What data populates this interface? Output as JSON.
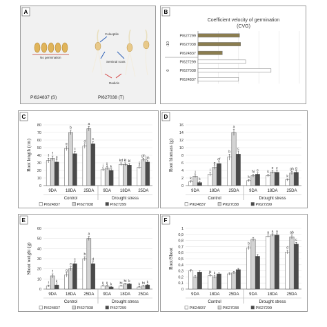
{
  "panel_a": {
    "label": "A",
    "no_germination": "No germination",
    "coleoptile": "Coleoptile",
    "seminal_roots": "Seminal roots",
    "radicle": "Radicle",
    "left_caption": "PI624837 (S)",
    "right_caption": "PI627038 (T)"
  },
  "colors": {
    "pi624837": "#ffffff",
    "pi627038": "#d3d3d3",
    "pi627299": "#4a4a4a",
    "panel_b_stress": "#8b7d4f",
    "seed": "#e0b45a",
    "arrow": "#2b5fb6",
    "radicle_arrow": "#d23b3b",
    "underline": "#c0392b"
  },
  "chart_data": [
    {
      "panel": "B",
      "type": "bar",
      "orientation": "horizontal",
      "title": "Coefficient velocity of germination",
      "subtitle": "(CVG)",
      "xlim": [
        0,
        1
      ],
      "xticks": [
        "0",
        "0.2",
        "0.4",
        "0.6",
        "0.8",
        "1"
      ],
      "groups": [
        {
          "name": "-10",
          "categories": [
            "PI627299",
            "PI627038",
            "PI624837"
          ],
          "values": [
            0.41,
            0.42,
            0.24
          ]
        },
        {
          "name": "0",
          "categories": [
            "PI627299",
            "PI627038",
            "PI624837"
          ],
          "values": [
            0.47,
            0.72,
            0.4
          ]
        }
      ],
      "grid": true
    },
    {
      "panel": "C",
      "type": "bar",
      "ylabel": "Root length (cm)",
      "ylim": [
        0,
        80
      ],
      "yticks": [
        "0",
        "10",
        "20",
        "30",
        "40",
        "50",
        "60",
        "70",
        "80"
      ],
      "categories": [
        "9DA",
        "18DA",
        "25DA",
        "9DA",
        "18DA",
        "25DA"
      ],
      "groups": [
        "Control",
        "Drought stress"
      ],
      "series": [
        {
          "name": "PI624837",
          "values": [
            33,
            49,
            52,
            21,
            28,
            24
          ],
          "errors": [
            3,
            3,
            3,
            2,
            2,
            2
          ],
          "letters": [
            "f",
            "e",
            "d",
            "j",
            "kd",
            "ij"
          ]
        },
        {
          "name": "PI627038",
          "values": [
            36,
            70,
            75,
            23,
            28,
            34
          ],
          "errors": [
            3,
            3,
            3,
            2,
            2,
            2
          ],
          "letters": [
            "f",
            "b",
            "a",
            "ij",
            "kl",
            "gh"
          ]
        },
        {
          "name": "PI627299",
          "values": [
            31,
            42,
            55,
            20,
            27,
            31
          ],
          "errors": [
            3,
            3,
            3,
            2,
            2,
            2
          ],
          "letters": [
            "g",
            "c",
            "c",
            "k",
            "kl",
            "gh"
          ]
        }
      ],
      "grid": true
    },
    {
      "panel": "D",
      "type": "bar",
      "ylabel": "Root biomass (g)",
      "ylim": [
        0,
        16
      ],
      "yticks": [
        "0",
        "2",
        "4",
        "6",
        "8",
        "10",
        "12",
        "14",
        "16"
      ],
      "categories": [
        "9DA",
        "18DA",
        "25DA",
        "9DA",
        "18DA",
        "25DA"
      ],
      "groups": [
        "Control",
        "Drought stress"
      ],
      "series": [
        {
          "name": "PI624837",
          "values": [
            1.0,
            3.0,
            7.5,
            1.3,
            2.6,
            1.5
          ],
          "errors": [
            0.3,
            0.5,
            0.8,
            0.3,
            0.4,
            0.3
          ],
          "letters": [
            "k",
            "i",
            "b",
            "k",
            "k",
            "k"
          ]
        },
        {
          "name": "PI627038",
          "values": [
            2.5,
            4.8,
            14.0,
            2.6,
            3.6,
            3.3
          ],
          "errors": [
            0.4,
            0.5,
            0.8,
            0.4,
            0.4,
            0.4
          ],
          "letters": [
            "j",
            "g",
            "a",
            "hi",
            "e",
            "gh"
          ]
        },
        {
          "name": "PI627299",
          "values": [
            0.8,
            5.8,
            8.3,
            3.0,
            3.5,
            3.5
          ],
          "errors": [
            0.3,
            0.5,
            0.8,
            0.4,
            0.4,
            0.4
          ],
          "letters": [
            "k",
            "ef",
            "c",
            "e",
            "e",
            "g"
          ]
        }
      ],
      "grid": true
    },
    {
      "panel": "E",
      "type": "bar",
      "ylabel": "Shoot weight (g)",
      "ylim": [
        0,
        60
      ],
      "yticks": [
        "0",
        "10",
        "20",
        "30",
        "40",
        "50",
        "60"
      ],
      "categories": [
        "9DA",
        "18DA",
        "25DA",
        "9DA",
        "18DA",
        "25DA"
      ],
      "groups": [
        "Control",
        "Drought stress"
      ],
      "series": [
        {
          "name": "PI624837",
          "values": [
            3,
            14,
            30,
            3,
            3,
            2
          ],
          "errors": [
            1,
            2,
            2,
            0.5,
            0.5,
            0.5
          ],
          "letters": [
            "i",
            "g",
            "b",
            "ij",
            "hi",
            "k"
          ]
        },
        {
          "name": "PI627038",
          "values": [
            13,
            20,
            50,
            3,
            5,
            3
          ],
          "errors": [
            2,
            2,
            2,
            0.5,
            0.5,
            0.5
          ],
          "letters": [
            "f",
            "e",
            "a",
            "ij",
            "hi",
            "hi"
          ]
        },
        {
          "name": "PI627299",
          "values": [
            4,
            25,
            25,
            2,
            5,
            4
          ],
          "errors": [
            1,
            2,
            2,
            0.5,
            0.5,
            0.5
          ],
          "letters": [
            "k",
            "c",
            "d",
            "k",
            "k",
            "k"
          ]
        }
      ],
      "grid": true
    },
    {
      "panel": "F",
      "type": "bar",
      "ylabel": "Root/Shoot",
      "ylim": [
        0,
        1
      ],
      "yticks": [
        "0",
        "0,1",
        "0,2",
        "0,3",
        "0,4",
        "0,5",
        "0,6",
        "0,7",
        "0,8",
        "0,9",
        "1"
      ],
      "categories": [
        "9DA",
        "18DA",
        "25DA",
        "9DA",
        "18DA",
        "25DA"
      ],
      "groups": [
        "Control",
        "Drought stress"
      ],
      "series": [
        {
          "name": "PI624837",
          "values": [
            0.3,
            0.22,
            0.25,
            0.68,
            0.87,
            0.61
          ],
          "errors": [
            0.02,
            0.02,
            0.02,
            0.03,
            0.02,
            0.03
          ],
          "letters": [
            "",
            "jk",
            "",
            "b",
            "a",
            "d"
          ]
        },
        {
          "name": "PI627038",
          "values": [
            0.2,
            0.2,
            0.27,
            0.82,
            0.89,
            0.86
          ],
          "errors": [
            0.02,
            0.02,
            0.02,
            0.03,
            0.02,
            0.03
          ],
          "letters": [
            "",
            "k",
            "",
            "",
            "a",
            "ab"
          ]
        },
        {
          "name": "PI627299",
          "values": [
            0.28,
            0.25,
            0.32,
            0.54,
            0.89,
            0.74
          ],
          "errors": [
            0.02,
            0.02,
            0.02,
            0.03,
            0.02,
            0.03
          ],
          "letters": [
            "",
            "",
            "",
            "",
            "a",
            "c"
          ]
        }
      ],
      "grid": true
    }
  ]
}
